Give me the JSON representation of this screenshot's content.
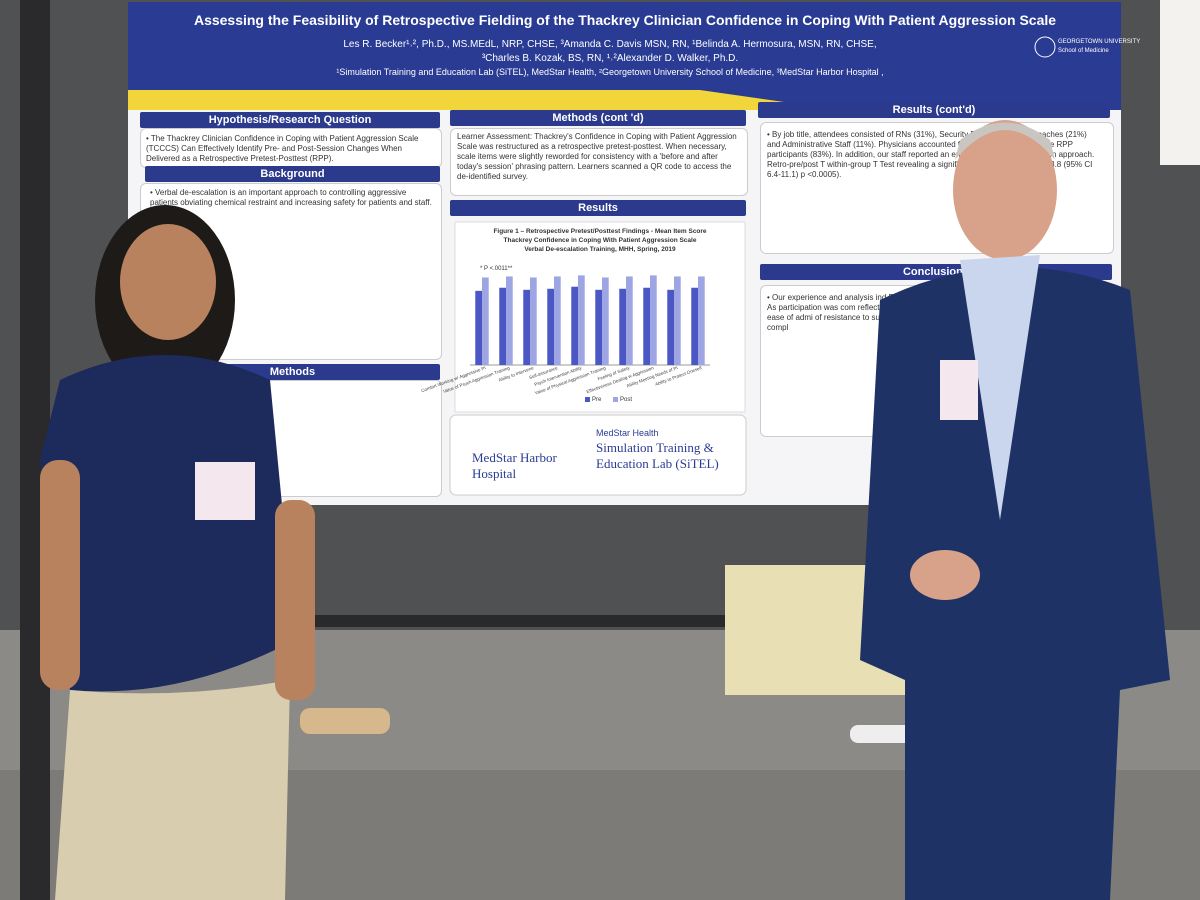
{
  "poster": {
    "title": "Assessing the Feasibility of Retrospective Fielding of the Thackrey Clinician Confidence in Coping With Patient Aggression Scale",
    "authors": [
      "Les R. Becker¹˒², Ph.D., MS.MEdL, NRP, CHSE, ³Amanda C. Davis MSN, RN, ¹Belinda A. Hermosura, MSN, RN, CHSE,",
      "³Charles B. Kozak, BS, RN, ¹˒²Alexander D. Walker, Ph.D."
    ],
    "affiliations": "¹Simulation Training and Education Lab (SiTEL), MedStar Health, ²Georgetown University School of Medicine, ³MedStar Harbor Hospital ,",
    "university": [
      "GEORGETOWN UNIVERSITY",
      "School of Medicine"
    ],
    "hypothesis": {
      "heading": "Hypothesis/Research Question",
      "text": "• The Thackrey Clinician Confidence in Coping with Patient Aggression Scale (TCCCS) Can Effectively Identify Pre- and Post-Session Changes When Delivered as a Retrospective Pretest-Posttest (RPP)."
    },
    "background": {
      "heading": "Background",
      "text": "• Verbal de-escalation is an important approach to controlling aggressive patients obviating chemical restraint and increasing safety for patients and staff."
    },
    "methods": {
      "heading": "Methods"
    },
    "methods_cont": {
      "heading": "Methods (cont 'd)",
      "text": "Learner Assessment: Thackrey's Confidence in Coping with Patient Aggression Scale was restructured as a retrospective pretest-posttest. When necessary, scale items were slightly reworded for consistency with a 'before and after today's session' phrasing pattern. Learners scanned a QR code to access the de-identified survey."
    },
    "results": {
      "heading": "Results"
    },
    "results_cont": {
      "heading": "Results (cont'd)",
      "text": "• By job title, attendees consisted of RNs (31%), Security Pe... Counselors/Coaches (21%) and Administrative Staff (11%). Physicians accounted for the remaining 13%. The RPP participants (83%). In addition, our staff reported an en code-based administration approach. Retro-pre/post T within-group T Test revealing a significant difference difference 8.8 (95% CI 6.4-11.1) p <0.0005)."
    },
    "conclusions": {
      "heading": "Conclusions",
      "text": "• Our experience and analysis ind RPP. As participation was com reflect a relative ease of admi of resistance to survey compl"
    },
    "chart": {
      "type": "bar",
      "title": [
        "Figure 1 – Retrospective Pretest/Posttest Findings - Mean Item Score",
        "Thackrey Confidence in Coping With Patient Aggression Scale",
        "Verbal De-escalation Training, MHH, Spring, 2019"
      ],
      "annotation": "* P <.0011**",
      "categories": [
        "Comfort Working w/ Aggressive Pt",
        "Value of Psych Aggression Training",
        "Ability to Intervene",
        "Self-assurance",
        "Psych Intervention Ability",
        "Value of Physical Aggression Training",
        "Feeling of Safety",
        "Effectiveness Dealing w Aggression",
        "Ability Meeting Needs of Pt",
        "Ability to Protect Oneself"
      ],
      "series": [
        {
          "name": "Pre",
          "color": "#4a57c4",
          "values": [
            7.2,
            7.5,
            7.3,
            7.4,
            7.6,
            7.3,
            7.4,
            7.5,
            7.3,
            7.5
          ]
        },
        {
          "name": "Post",
          "color": "#9ea5e3",
          "values": [
            8.5,
            8.6,
            8.5,
            8.6,
            8.7,
            8.5,
            8.6,
            8.7,
            8.6,
            8.6
          ]
        }
      ],
      "ylim": [
        0,
        10
      ]
    },
    "logos": [
      "MedStar Harbor Hospital",
      "MedStar Health",
      "Simulation Training & Education Lab (SiTEL)"
    ]
  }
}
